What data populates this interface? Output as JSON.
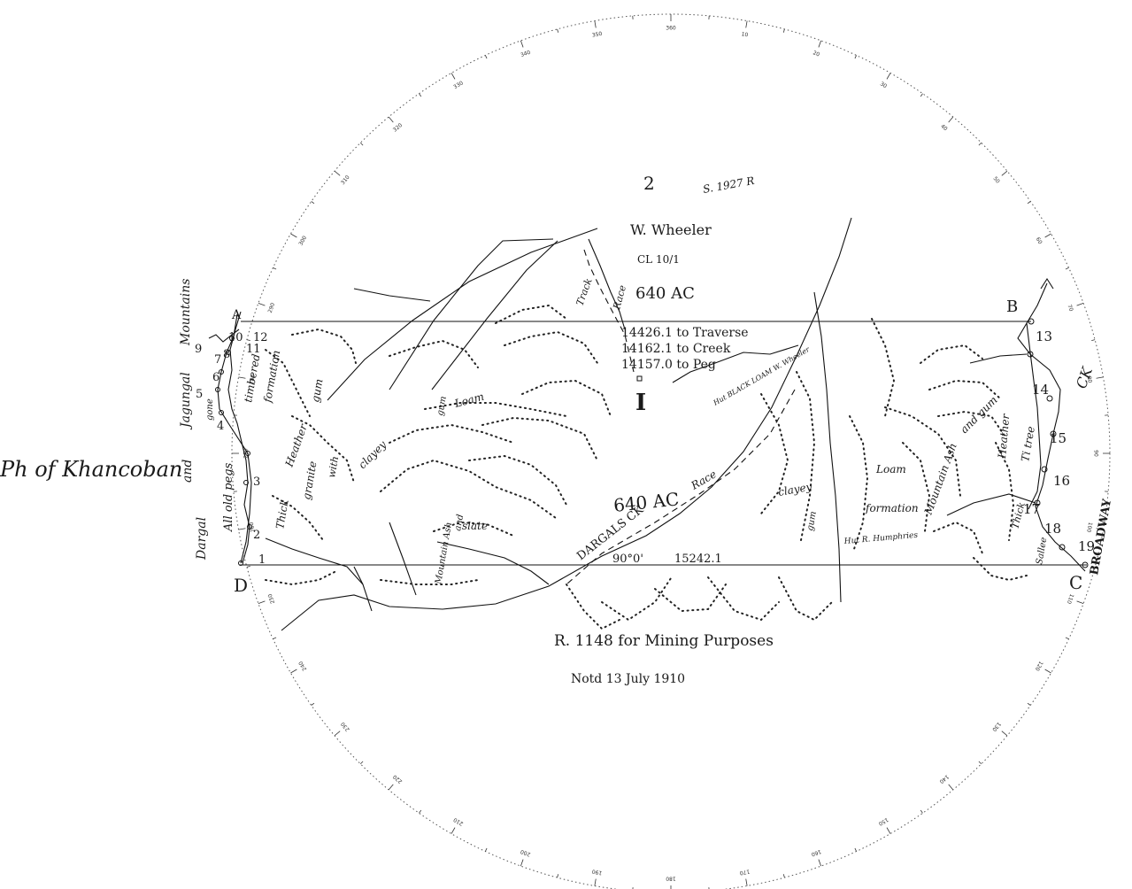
{
  "compass": {
    "ring_labels": [
      "360",
      "10",
      "20",
      "30",
      "40",
      "50",
      "60",
      "70",
      "80",
      "90",
      "100",
      "110",
      "120",
      "130",
      "140",
      "150",
      "160",
      "170",
      "180",
      "190",
      "200",
      "210",
      "220",
      "230",
      "240",
      "250",
      "260",
      "270",
      "280",
      "290",
      "300",
      "310",
      "320",
      "330",
      "340",
      "350"
    ]
  },
  "portion": {
    "number": "2",
    "record": "S. 1927 R",
    "holder": "W. Wheeler",
    "cl": "CL 10/1",
    "area": "640 AC"
  },
  "portion_south_area": "640 AC",
  "traverse": {
    "line1": "14426.1 to Traverse",
    "line2": "14162.1 to Creek",
    "line3": "14157.0 to Peg"
  },
  "hut_label": "Hut BLACK LOAM W. Wheeler",
  "label_I": "I",
  "bearing_line": {
    "bearing": "90°0'",
    "distance": "15242.1"
  },
  "corners": {
    "A": "A",
    "B": "B",
    "C": "C",
    "D": "D"
  },
  "footer": {
    "title": "R. 1148 for Mining Purposes",
    "notified": "Notd 13 July 1910"
  },
  "side_title": "Ph of Khancoban",
  "west_labels": {
    "jagungal": "Jagungal",
    "mountains": "Mountains",
    "and": "and",
    "dargal": "Dargal",
    "all_old_pegs": "All old pegs",
    "gone": "gone",
    "timbered": "timbered",
    "formation": "formation",
    "gum": "gum",
    "heather": "Heather",
    "thick": "Thick",
    "granite": "granite",
    "with": "with",
    "clayey": "clayey"
  },
  "central_labels": {
    "loam": "Loam",
    "mountain_ash": "Mountain Ash",
    "and": "and",
    "gum": "gum",
    "slate": "slate",
    "dargals_ck": "DARGALS CK",
    "race": "Race",
    "track": "Track",
    "race2": "Race"
  },
  "east_labels": {
    "loam": "Loam",
    "clayey": "clayey",
    "gum": "gum",
    "formation": "formation",
    "mountain_ash": "Mountain Ash",
    "and_gum": "and gum",
    "heather": "Heather",
    "titree": "Ti tree",
    "thick": "Thick",
    "sallee": "Sallee",
    "broadway": "BROADWAY",
    "ck": "CK",
    "hut_humphries": "Hut R. Humphries"
  },
  "pegs": [
    "1",
    "2",
    "3",
    "4",
    "5",
    "6",
    "7",
    "8",
    "9",
    "10",
    "11",
    "12",
    "13",
    "14",
    "15",
    "16",
    "17",
    "18",
    "19"
  ]
}
